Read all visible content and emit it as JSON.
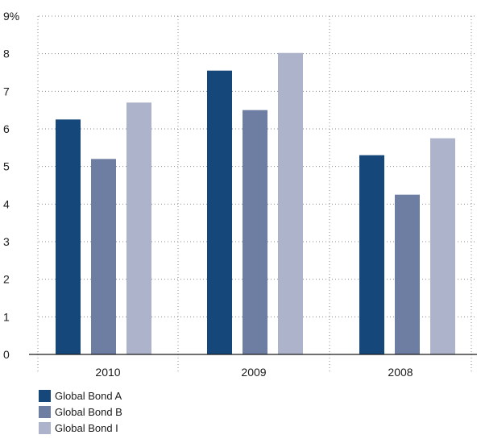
{
  "chart_data": {
    "type": "bar",
    "categories": [
      "2010",
      "2009",
      "2008"
    ],
    "series": [
      {
        "name": "Global Bond A",
        "color": "#15477a",
        "values": [
          6.25,
          7.55,
          5.3
        ]
      },
      {
        "name": "Global Bond B",
        "color": "#6e7ea2",
        "values": [
          5.2,
          6.5,
          4.25
        ]
      },
      {
        "name": "Global Bond I",
        "color": "#adb3ca",
        "values": [
          6.7,
          8.02,
          5.75
        ]
      }
    ],
    "y_ticks": [
      "0",
      "1",
      "2",
      "3",
      "4",
      "5",
      "6",
      "7",
      "8",
      "9%"
    ],
    "ylim": [
      0,
      9
    ],
    "title": "",
    "xlabel": "",
    "ylabel": "",
    "grid": true,
    "legend_position": "bottom-left"
  }
}
